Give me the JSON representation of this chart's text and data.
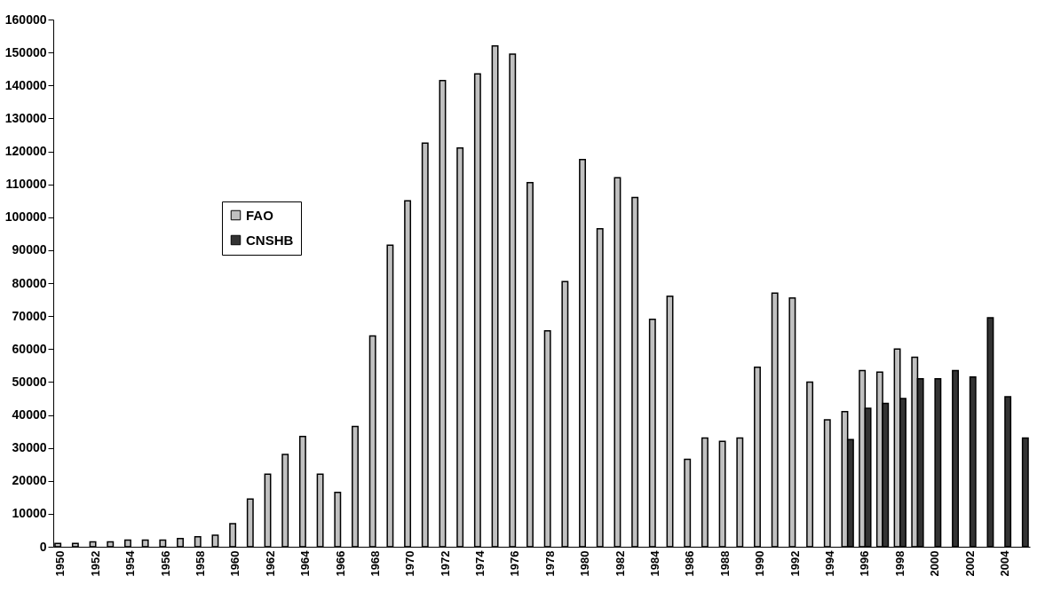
{
  "chart_data": {
    "type": "bar",
    "categories": [
      "1950",
      null,
      "1952",
      null,
      "1954",
      null,
      "1956",
      null,
      "1958",
      null,
      "1960",
      null,
      "1962",
      null,
      "1964",
      null,
      "1966",
      null,
      "1968",
      null,
      "1970",
      null,
      "1972",
      null,
      "1974",
      null,
      "1976",
      null,
      "1978",
      null,
      "1980",
      null,
      "1982",
      null,
      "1984",
      null,
      "1986",
      null,
      "1988",
      null,
      "1990",
      null,
      "1992",
      null,
      "1994",
      null,
      "1996",
      null,
      "1998",
      null,
      "2000",
      null,
      "2002",
      null,
      "2004",
      null
    ],
    "series": [
      {
        "name": "FAO",
        "color": "#c0c0c0",
        "values": [
          1000,
          1000,
          1500,
          1500,
          2000,
          2000,
          2000,
          2500,
          3000,
          3500,
          7000,
          14500,
          22000,
          28000,
          33500,
          22000,
          16500,
          36500,
          64000,
          91500,
          105000,
          122500,
          141500,
          121000,
          143500,
          152000,
          149500,
          110500,
          65500,
          80500,
          117500,
          96500,
          112000,
          106000,
          69000,
          76000,
          26500,
          33000,
          32000,
          33000,
          54500,
          77000,
          75500,
          50000,
          38500,
          41000,
          53500,
          53000,
          60000,
          57500,
          null,
          null,
          null,
          null,
          null,
          null
        ]
      },
      {
        "name": "CNSHB",
        "color": "#333333",
        "values": [
          null,
          null,
          null,
          null,
          null,
          null,
          null,
          null,
          null,
          null,
          null,
          null,
          null,
          null,
          null,
          null,
          null,
          null,
          null,
          null,
          null,
          null,
          null,
          null,
          null,
          null,
          null,
          null,
          null,
          null,
          null,
          null,
          null,
          null,
          null,
          null,
          null,
          null,
          null,
          null,
          null,
          null,
          null,
          null,
          null,
          32500,
          42000,
          43500,
          45000,
          51000,
          51000,
          53500,
          51500,
          69500,
          45500,
          33000
        ]
      }
    ],
    "ylim": [
      0,
      160000
    ],
    "yticks": [
      0,
      10000,
      20000,
      30000,
      40000,
      50000,
      60000,
      70000,
      80000,
      90000,
      100000,
      110000,
      120000,
      130000,
      140000,
      150000,
      160000
    ],
    "legend": "left"
  }
}
